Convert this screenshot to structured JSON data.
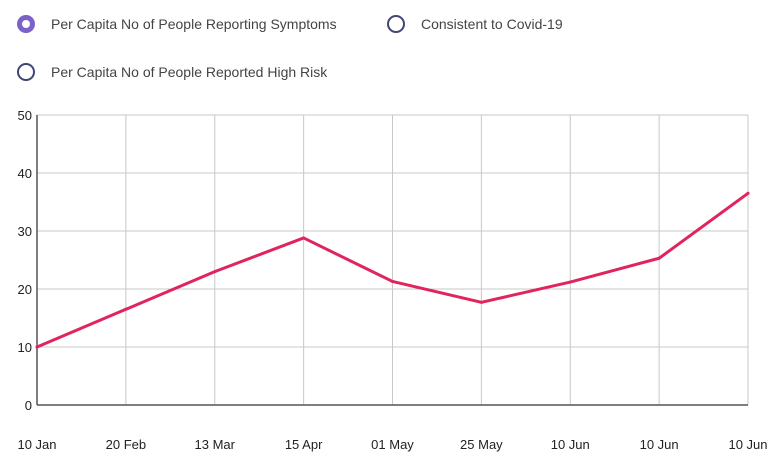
{
  "legend": {
    "options": [
      {
        "label": "Per Capita No of People Reporting Symptoms",
        "checked": true
      },
      {
        "label": "Consistent to Covid-19",
        "checked": false
      },
      {
        "label": "Per Capita No of People Reported High Risk",
        "checked": false
      }
    ]
  },
  "colors": {
    "line": "#e0245e",
    "grid": "#c8c8c8",
    "axis": "#555555",
    "radio_checked": "#7b61c9",
    "radio_border": "#3f4577"
  },
  "chart_data": {
    "type": "line",
    "categories": [
      "10 Jan",
      "20 Feb",
      "13 Mar",
      "15 Apr",
      "01 May",
      "25 May",
      "10 Jun",
      "10 Jun",
      "10 Jun"
    ],
    "series": [
      {
        "name": "Per Capita No of People Reporting Symptoms",
        "values": [
          10,
          16.5,
          23,
          28.8,
          21.3,
          17.7,
          21.2,
          25.3,
          36.5
        ]
      }
    ],
    "xlabel": "",
    "ylabel": "",
    "ylim": [
      0,
      50
    ],
    "yticks": [
      0,
      10,
      20,
      30,
      40,
      50
    ],
    "grid": true
  }
}
